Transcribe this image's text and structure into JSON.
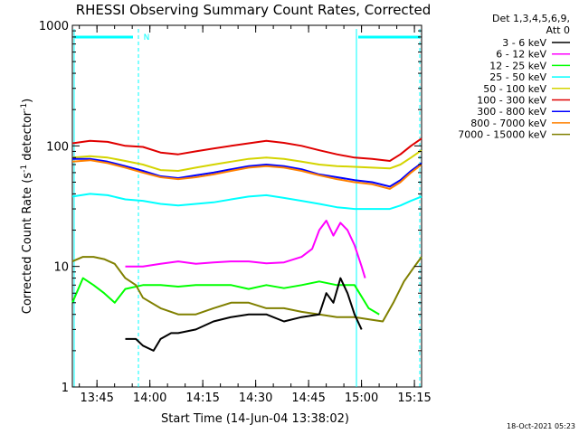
{
  "chart_data": {
    "type": "line",
    "title": "RHESSI Observing Summary Count Rates, Corrected",
    "ylabel_main": "Corrected Count Rate (s",
    "ylabel_sup1": "-1",
    "ylabel_mid": " detector",
    "ylabel_sup2": "-1",
    "ylabel_end": ")",
    "xlabel": "Start Time (14-Jun-04 13:38:02)",
    "yscale": "log",
    "ylim": [
      1,
      1000
    ],
    "xlim_minutes": [
      0,
      99
    ],
    "yticks": [
      {
        "value": 1,
        "label": "1"
      },
      {
        "value": 10,
        "label": "10"
      },
      {
        "value": 100,
        "label": "100"
      },
      {
        "value": 1000,
        "label": "1000"
      }
    ],
    "xticks": [
      {
        "minutes": 6.97,
        "label": "13:45"
      },
      {
        "minutes": 21.97,
        "label": "14:00"
      },
      {
        "minutes": 36.97,
        "label": "14:15"
      },
      {
        "minutes": 51.97,
        "label": "14:30"
      },
      {
        "minutes": 66.97,
        "label": "14:45"
      },
      {
        "minutes": 81.97,
        "label": "15:00"
      },
      {
        "minutes": 96.97,
        "label": "15:15"
      }
    ],
    "detectors": "Det 1,3,4,5,6,9,",
    "attenuator": "Att 0",
    "timestamp": "18-Oct-2021 05:23",
    "night_marker": "N",
    "legend": [
      {
        "label": "3 - 6 keV",
        "color": "#000000"
      },
      {
        "label": "6 - 12 keV",
        "color": "#ff00ff"
      },
      {
        "label": "12 - 25 keV",
        "color": "#00ff00"
      },
      {
        "label": "25 - 50 keV",
        "color": "#00ffff"
      },
      {
        "label": "50 - 100 keV",
        "color": "#d4d400"
      },
      {
        "label": "100 - 300 keV",
        "color": "#e00000"
      },
      {
        "label": "300 - 800 keV",
        "color": "#0000ff"
      },
      {
        "label": "800 - 7000 keV",
        "color": "#ff8000"
      },
      {
        "label": "7000 - 15000 keV",
        "color": "#808000"
      }
    ],
    "series": [
      {
        "name": "100 - 300 keV",
        "color": "#e00000",
        "x": [
          0,
          5,
          10,
          15,
          20,
          25,
          30,
          35,
          40,
          45,
          50,
          55,
          60,
          65,
          70,
          75,
          80,
          85,
          90,
          93,
          96,
          99
        ],
        "y": [
          105,
          110,
          108,
          100,
          98,
          88,
          85,
          90,
          95,
          100,
          105,
          110,
          106,
          100,
          92,
          85,
          80,
          78,
          75,
          85,
          100,
          115
        ]
      },
      {
        "name": "50 - 100 keV",
        "color": "#d4d400",
        "x": [
          0,
          5,
          10,
          15,
          20,
          25,
          30,
          35,
          40,
          45,
          50,
          55,
          60,
          65,
          70,
          75,
          80,
          85,
          90,
          93,
          96,
          99
        ],
        "y": [
          80,
          82,
          80,
          75,
          70,
          63,
          62,
          66,
          70,
          74,
          78,
          80,
          78,
          74,
          70,
          68,
          67,
          66,
          65,
          70,
          80,
          92
        ]
      },
      {
        "name": "300 - 800 keV",
        "color": "#0000ff",
        "x": [
          0,
          5,
          10,
          15,
          20,
          25,
          30,
          35,
          40,
          45,
          50,
          55,
          60,
          65,
          70,
          75,
          80,
          85,
          90,
          93,
          96,
          99
        ],
        "y": [
          78,
          78,
          74,
          68,
          62,
          56,
          54,
          57,
          60,
          64,
          68,
          70,
          68,
          64,
          58,
          55,
          52,
          50,
          46,
          52,
          62,
          72
        ]
      },
      {
        "name": "800 - 7000 keV",
        "color": "#ff8000",
        "x": [
          0,
          5,
          10,
          15,
          20,
          25,
          30,
          35,
          40,
          45,
          50,
          55,
          60,
          65,
          70,
          75,
          80,
          85,
          90,
          93,
          96,
          99
        ],
        "y": [
          74,
          76,
          72,
          66,
          60,
          55,
          53,
          55,
          58,
          62,
          66,
          68,
          66,
          62,
          57,
          53,
          50,
          48,
          44,
          50,
          60,
          70
        ]
      },
      {
        "name": "25 - 50 keV",
        "color": "#00ffff",
        "x": [
          0,
          5,
          10,
          15,
          20,
          25,
          30,
          35,
          40,
          45,
          50,
          55,
          60,
          65,
          70,
          75,
          80,
          85,
          90,
          93,
          96,
          99
        ],
        "y": [
          38,
          40,
          39,
          36,
          35,
          33,
          32,
          33,
          34,
          36,
          38,
          39,
          37,
          35,
          33,
          31,
          30,
          30,
          30,
          32,
          35,
          38
        ]
      },
      {
        "name": "6 - 12 keV",
        "color": "#ff00ff",
        "x": [
          15,
          20,
          25,
          30,
          35,
          40,
          45,
          50,
          55,
          60,
          65,
          68,
          70,
          72,
          74,
          76,
          78,
          80,
          82,
          83
        ],
        "y": [
          10,
          10,
          10.5,
          11,
          10.5,
          10.8,
          11,
          11,
          10.6,
          10.8,
          12,
          14,
          20,
          24,
          18,
          23,
          20,
          15,
          10,
          8
        ]
      },
      {
        "name": "12 - 25 keV",
        "color": "#00ff00",
        "x": [
          0,
          3,
          6,
          9,
          12,
          15,
          20,
          25,
          30,
          35,
          40,
          45,
          50,
          55,
          60,
          65,
          70,
          75,
          80,
          84,
          87
        ],
        "y": [
          5,
          8,
          7,
          6,
          5,
          6.5,
          7,
          7,
          6.8,
          7,
          7,
          7,
          6.5,
          7,
          6.6,
          7,
          7.5,
          7,
          7,
          4.5,
          4
        ]
      },
      {
        "name": "7000 - 15000 keV",
        "color": "#808000",
        "x": [
          0,
          3,
          6,
          9,
          12,
          15,
          18,
          20,
          25,
          30,
          35,
          40,
          45,
          50,
          55,
          60,
          65,
          70,
          75,
          80,
          85,
          88,
          91,
          94,
          97,
          99
        ],
        "y": [
          11,
          12,
          12,
          11.5,
          10.5,
          8,
          7,
          5.5,
          4.5,
          4,
          4,
          4.5,
          5,
          5,
          4.5,
          4.5,
          4.2,
          4,
          3.8,
          3.8,
          3.6,
          3.5,
          5,
          7.5,
          10,
          12
        ]
      },
      {
        "name": "3 - 6 keV",
        "color": "#000000",
        "x": [
          15,
          18,
          20,
          23,
          25,
          28,
          30,
          35,
          40,
          45,
          50,
          55,
          60,
          65,
          70,
          72,
          74,
          76,
          78,
          80,
          82
        ],
        "y": [
          2.5,
          2.5,
          2.2,
          2,
          2.5,
          2.8,
          2.8,
          3,
          3.5,
          3.8,
          4,
          4,
          3.5,
          3.8,
          4,
          6,
          5,
          8,
          6,
          4,
          3
        ]
      }
    ]
  }
}
